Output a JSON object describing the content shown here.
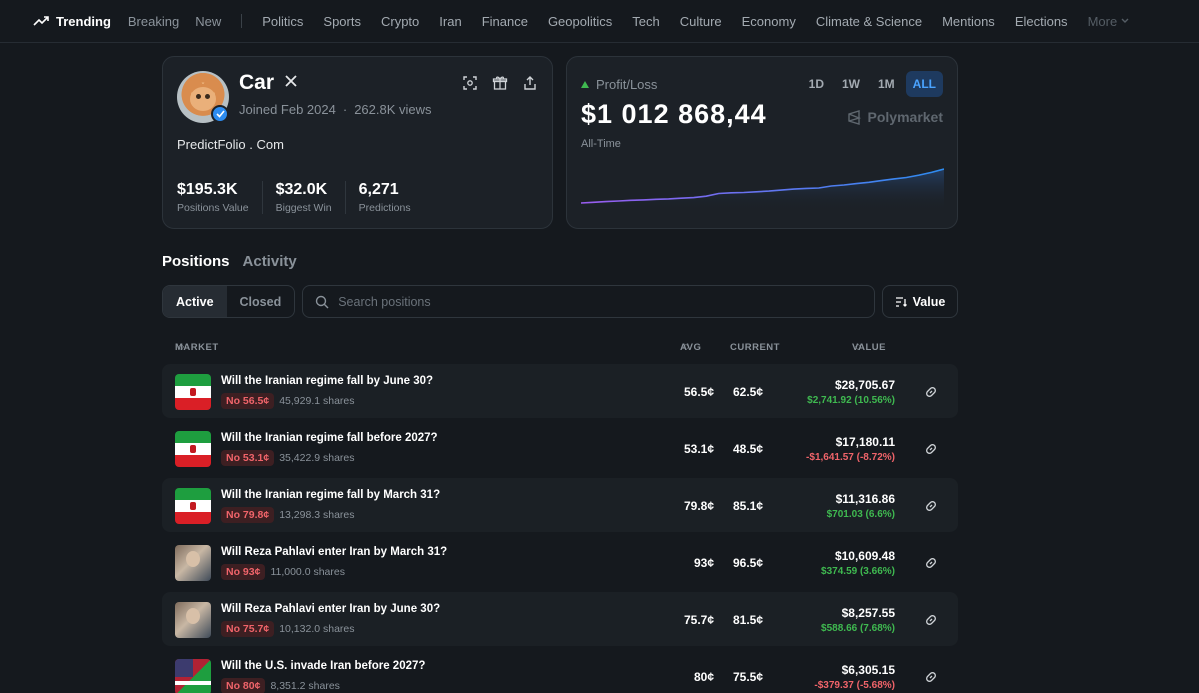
{
  "nav": {
    "trending": "Trending",
    "primary": [
      "Breaking",
      "New"
    ],
    "categories": [
      "Politics",
      "Sports",
      "Crypto",
      "Iran",
      "Finance",
      "Geopolitics",
      "Tech",
      "Culture",
      "Economy",
      "Climate & Science",
      "Mentions",
      "Elections"
    ],
    "more": "More"
  },
  "profile": {
    "name": "Car",
    "joined": "Joined Feb 2024",
    "views": "262.8K views",
    "bio": "PredictFolio . Com",
    "stats": [
      {
        "value": "$195.3K",
        "label": "Positions Value"
      },
      {
        "value": "$32.0K",
        "label": "Biggest Win"
      },
      {
        "value": "6,271",
        "label": "Predictions"
      }
    ]
  },
  "pnl": {
    "label": "Profit/Loss",
    "value": "$1 012 868,44",
    "period": "All-Time",
    "ranges": [
      "1D",
      "1W",
      "1M",
      "ALL"
    ],
    "active_range": "ALL",
    "brand": "Polymarket",
    "series": [
      0.0,
      0.02,
      0.04,
      0.06,
      0.08,
      0.09,
      0.11,
      0.12,
      0.14,
      0.16,
      0.2,
      0.28,
      0.3,
      0.31,
      0.33,
      0.35,
      0.38,
      0.41,
      0.43,
      0.44,
      0.5,
      0.53,
      0.57,
      0.61,
      0.66,
      0.71,
      0.75,
      0.82,
      0.9,
      1.0
    ]
  },
  "tabs": {
    "positions": "Positions",
    "activity": "Activity"
  },
  "filters": {
    "active": "Active",
    "closed": "Closed",
    "search_placeholder": "Search positions",
    "sort": "Value"
  },
  "table": {
    "headers": {
      "market": "MARKET",
      "avg": "AVG",
      "current": "CURRENT",
      "value": "VALUE"
    },
    "rows": [
      {
        "title": "Will the Iranian regime fall by June 30?",
        "badge": "No 56.5¢",
        "shares": "45,929.1 shares",
        "avg": "56.5¢",
        "current": "62.5¢",
        "value": "$28,705.67",
        "change": "$2,741.92 (10.56%)",
        "dir": "up",
        "img": "iran"
      },
      {
        "title": "Will the Iranian regime fall before 2027?",
        "badge": "No 53.1¢",
        "shares": "35,422.9 shares",
        "avg": "53.1¢",
        "current": "48.5¢",
        "value": "$17,180.11",
        "change": "-$1,641.57 (-8.72%)",
        "dir": "down",
        "img": "iran"
      },
      {
        "title": "Will the Iranian regime fall by March 31?",
        "badge": "No 79.8¢",
        "shares": "13,298.3 shares",
        "avg": "79.8¢",
        "current": "85.1¢",
        "value": "$11,316.86",
        "change": "$701.03 (6.6%)",
        "dir": "up",
        "img": "iran"
      },
      {
        "title": "Will Reza Pahlavi enter Iran by March 31?",
        "badge": "No 93¢",
        "shares": "11,000.0 shares",
        "avg": "93¢",
        "current": "96.5¢",
        "value": "$10,609.48",
        "change": "$374.59 (3.66%)",
        "dir": "up",
        "img": "person"
      },
      {
        "title": "Will Reza Pahlavi enter Iran by June 30?",
        "badge": "No 75.7¢",
        "shares": "10,132.0 shares",
        "avg": "75.7¢",
        "current": "81.5¢",
        "value": "$8,257.55",
        "change": "$588.66 (7.68%)",
        "dir": "up",
        "img": "person"
      },
      {
        "title": "Will the U.S. invade Iran before 2027?",
        "badge": "No 80¢",
        "shares": "8,351.2 shares",
        "avg": "80¢",
        "current": "75.5¢",
        "value": "$6,305.15",
        "change": "-$379.37 (-5.68%)",
        "dir": "down",
        "img": "us"
      }
    ]
  }
}
